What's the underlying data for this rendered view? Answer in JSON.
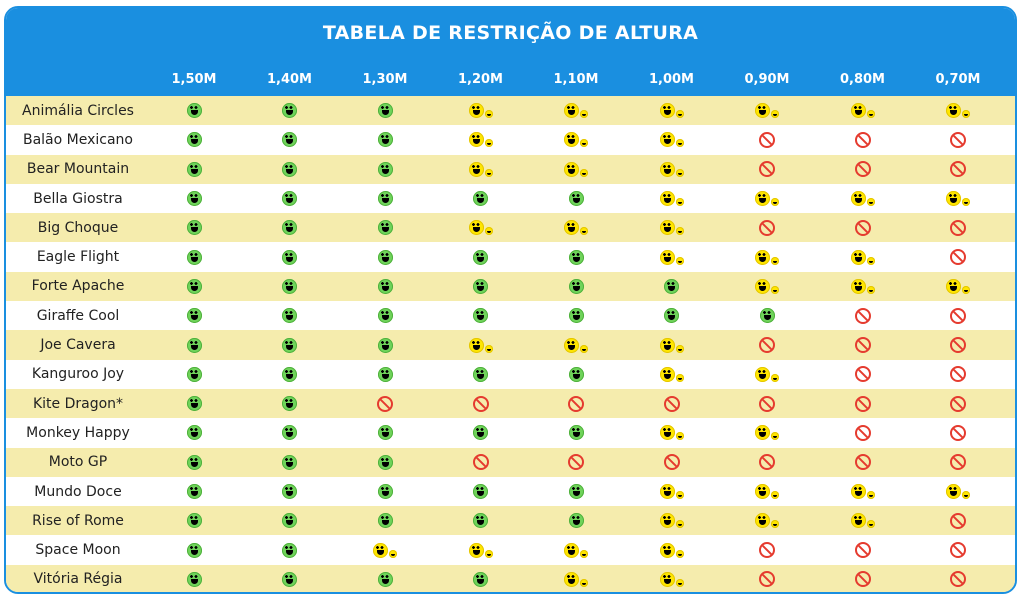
{
  "title": "TABELA DE RESTRIÇÃO DE ALTURA",
  "columns": [
    "1,50M",
    "1,40M",
    "1,30M",
    "1,20M",
    "1,10M",
    "1,00M",
    "0,90M",
    "0,80M",
    "0,70M"
  ],
  "legend_symbols": {
    "g": "green-smile-icon",
    "y": "yellow-smile-with-child-icon",
    "n": "prohibited-icon"
  },
  "colors": {
    "header": "#1a8fe0",
    "row_alt": "#f5ecad",
    "green": "#6fd35a",
    "yellow": "#ffe600",
    "red": "#e53b2f"
  },
  "rows": [
    {
      "name": "Animália Circles",
      "cells": [
        "g",
        "g",
        "g",
        "y",
        "y",
        "y",
        "y",
        "y",
        "y"
      ]
    },
    {
      "name": "Balão Mexicano",
      "cells": [
        "g",
        "g",
        "g",
        "y",
        "y",
        "y",
        "n",
        "n",
        "n"
      ]
    },
    {
      "name": "Bear Mountain",
      "cells": [
        "g",
        "g",
        "g",
        "y",
        "y",
        "y",
        "n",
        "n",
        "n"
      ]
    },
    {
      "name": "Bella Giostra",
      "cells": [
        "g",
        "g",
        "g",
        "g",
        "g",
        "y",
        "y",
        "y",
        "y"
      ]
    },
    {
      "name": "Big Choque",
      "cells": [
        "g",
        "g",
        "g",
        "y",
        "y",
        "y",
        "n",
        "n",
        "n"
      ]
    },
    {
      "name": "Eagle Flight",
      "cells": [
        "g",
        "g",
        "g",
        "g",
        "g",
        "y",
        "y",
        "y",
        "n"
      ]
    },
    {
      "name": "Forte Apache",
      "cells": [
        "g",
        "g",
        "g",
        "g",
        "g",
        "g",
        "y",
        "y",
        "y"
      ]
    },
    {
      "name": "Giraffe Cool",
      "cells": [
        "g",
        "g",
        "g",
        "g",
        "g",
        "g",
        "g",
        "n",
        "n"
      ]
    },
    {
      "name": "Joe Cavera",
      "cells": [
        "g",
        "g",
        "g",
        "y",
        "y",
        "y",
        "n",
        "n",
        "n"
      ]
    },
    {
      "name": "Kanguroo Joy",
      "cells": [
        "g",
        "g",
        "g",
        "g",
        "g",
        "y",
        "y",
        "n",
        "n"
      ]
    },
    {
      "name": "Kite Dragon*",
      "cells": [
        "g",
        "g",
        "n",
        "n",
        "n",
        "n",
        "n",
        "n",
        "n"
      ]
    },
    {
      "name": "Monkey Happy",
      "cells": [
        "g",
        "g",
        "g",
        "g",
        "g",
        "y",
        "y",
        "n",
        "n"
      ]
    },
    {
      "name": "Moto GP",
      "cells": [
        "g",
        "g",
        "g",
        "n",
        "n",
        "n",
        "n",
        "n",
        "n"
      ]
    },
    {
      "name": "Mundo Doce",
      "cells": [
        "g",
        "g",
        "g",
        "g",
        "g",
        "y",
        "y",
        "y",
        "y"
      ]
    },
    {
      "name": "Rise of Rome",
      "cells": [
        "g",
        "g",
        "g",
        "g",
        "g",
        "y",
        "y",
        "y",
        "n"
      ]
    },
    {
      "name": "Space Moon",
      "cells": [
        "g",
        "g",
        "y",
        "y",
        "y",
        "y",
        "n",
        "n",
        "n"
      ]
    },
    {
      "name": "Vitória Régia",
      "cells": [
        "g",
        "g",
        "g",
        "g",
        "y",
        "y",
        "n",
        "n",
        "n"
      ]
    }
  ]
}
